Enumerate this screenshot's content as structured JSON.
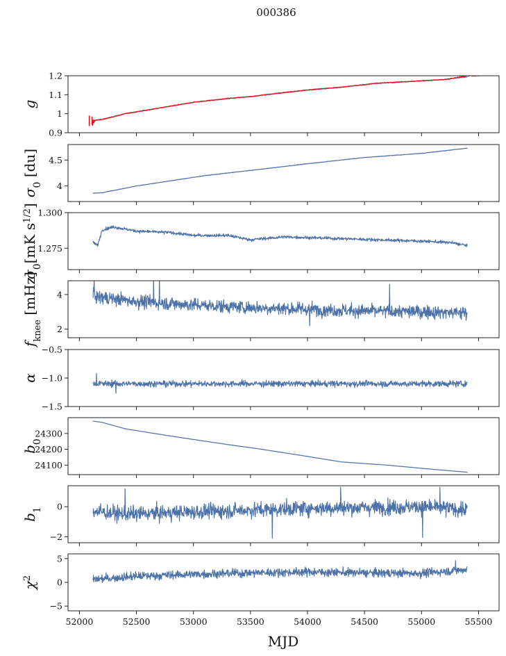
{
  "figure": {
    "title": "000386",
    "xlabel": "MJD",
    "colors": {
      "series": "#4c72a8",
      "fit": "#e8131b"
    }
  },
  "chart_data": [
    {
      "type": "line",
      "ylabel": "g",
      "ylabel_sub": "",
      "ylim": [
        0.9,
        1.2
      ],
      "yticks": [
        0.9,
        1.0,
        1.1,
        1.2
      ],
      "xlim": [
        51900,
        55680
      ],
      "x_range": [
        52110,
        55400
      ],
      "trend": [
        [
          52110,
          0.965
        ],
        [
          52200,
          0.97
        ],
        [
          52400,
          1.0
        ],
        [
          52600,
          1.02
        ],
        [
          52800,
          1.04
        ],
        [
          53000,
          1.06
        ],
        [
          53300,
          1.08
        ],
        [
          53500,
          1.09
        ],
        [
          53700,
          1.105
        ],
        [
          54000,
          1.125
        ],
        [
          54300,
          1.14
        ],
        [
          54600,
          1.16
        ],
        [
          54900,
          1.17
        ],
        [
          55200,
          1.18
        ],
        [
          55400,
          1.195
        ]
      ],
      "noise": 0.002,
      "spikes": [],
      "overlay": {
        "name": "",
        "color": "#e8131b",
        "trend": [
          [
            52110,
            0.962
          ],
          [
            52200,
            0.97
          ],
          [
            52400,
            1.0
          ],
          [
            52600,
            1.02
          ],
          [
            52800,
            1.04
          ],
          [
            53000,
            1.06
          ],
          [
            53300,
            1.08
          ],
          [
            53500,
            1.09
          ],
          [
            53700,
            1.105
          ],
          [
            54000,
            1.125
          ],
          [
            54300,
            1.14
          ],
          [
            54600,
            1.16
          ],
          [
            54900,
            1.17
          ],
          [
            55200,
            1.18
          ],
          [
            55400,
            1.2
          ],
          [
            55500,
            1.2
          ]
        ],
        "burst": [
          52080,
          52130,
          0.03
        ]
      }
    },
    {
      "type": "line",
      "ylabel": "σ",
      "ylabel_sub": "0",
      "ylabel_suffix": " [du]",
      "ylim": [
        3.7,
        4.8
      ],
      "yticks": [
        4.0,
        4.5
      ],
      "xlim": [
        51900,
        55680
      ],
      "x_range": [
        52120,
        55400
      ],
      "trend": [
        [
          52120,
          3.86
        ],
        [
          52200,
          3.87
        ],
        [
          52500,
          4.0
        ],
        [
          52800,
          4.1
        ],
        [
          53100,
          4.2
        ],
        [
          53500,
          4.3
        ],
        [
          54000,
          4.43
        ],
        [
          54500,
          4.55
        ],
        [
          55000,
          4.63
        ],
        [
          55400,
          4.73
        ]
      ],
      "noise": 0.004,
      "spikes": []
    },
    {
      "type": "line",
      "ylabel": "σ",
      "ylabel_sub": "0",
      "ylabel_suffix": "[mK s",
      "ylabel_sup": "1/2",
      "ylabel_end": "]",
      "ylim": [
        1.26,
        1.3
      ],
      "yticks": [
        1.275,
        1.3
      ],
      "ytick_fmt": 3,
      "xlim": [
        51900,
        55680
      ],
      "x_range": [
        52120,
        55400
      ],
      "trend": [
        [
          52120,
          1.279
        ],
        [
          52160,
          1.277
        ],
        [
          52200,
          1.288
        ],
        [
          52300,
          1.29
        ],
        [
          52500,
          1.287
        ],
        [
          52800,
          1.286
        ],
        [
          53000,
          1.284
        ],
        [
          53300,
          1.284
        ],
        [
          53500,
          1.281
        ],
        [
          53800,
          1.283
        ],
        [
          54200,
          1.282
        ],
        [
          54600,
          1.281
        ],
        [
          55000,
          1.28
        ],
        [
          55250,
          1.279
        ],
        [
          55400,
          1.277
        ]
      ],
      "noise": 0.0009,
      "spikes": []
    },
    {
      "type": "line",
      "ylabel": "f",
      "ylabel_sub": "knee",
      "ylabel_suffix": " [mHz]",
      "ylim": [
        1.5,
        4.8
      ],
      "yticks": [
        2,
        4
      ],
      "xlim": [
        51900,
        55680
      ],
      "x_range": [
        52120,
        55400
      ],
      "trend": [
        [
          52120,
          3.9
        ],
        [
          52500,
          3.6
        ],
        [
          53000,
          3.4
        ],
        [
          53500,
          3.25
        ],
        [
          54000,
          3.15
        ],
        [
          54500,
          3.05
        ],
        [
          55000,
          3.0
        ],
        [
          55400,
          2.95
        ]
      ],
      "noise": 0.32,
      "spikes": [
        [
          52130,
          4.9
        ],
        [
          52650,
          4.9
        ],
        [
          52700,
          4.9
        ],
        [
          54720,
          4.6
        ],
        [
          54020,
          2.2
        ]
      ]
    },
    {
      "type": "line",
      "ylabel": "α",
      "ylabel_sub": "",
      "ylim": [
        -1.5,
        -0.5
      ],
      "yticks": [
        -1.5,
        -1.0,
        -0.5
      ],
      "ytick_fmt": 1,
      "xlim": [
        51900,
        55680
      ],
      "x_range": [
        52120,
        55400
      ],
      "trend": [
        [
          52120,
          -1.1
        ],
        [
          55400,
          -1.1
        ]
      ],
      "noise": 0.045,
      "spikes": [
        [
          52150,
          -0.92
        ],
        [
          52320,
          -1.27
        ]
      ]
    },
    {
      "type": "line",
      "ylabel": "b",
      "ylabel_sub": "0",
      "ylim": [
        24040,
        24400
      ],
      "yticks": [
        24100,
        24200,
        24300
      ],
      "xlim": [
        51900,
        55680
      ],
      "x_range": [
        52120,
        55400
      ],
      "trend": [
        [
          52120,
          24378
        ],
        [
          52200,
          24370
        ],
        [
          52400,
          24330
        ],
        [
          52700,
          24295
        ],
        [
          53000,
          24262
        ],
        [
          53300,
          24230
        ],
        [
          53600,
          24200
        ],
        [
          54000,
          24155
        ],
        [
          54300,
          24120
        ],
        [
          54700,
          24100
        ],
        [
          55000,
          24080
        ],
        [
          55400,
          24055
        ]
      ],
      "noise": 0.6,
      "spikes": []
    },
    {
      "type": "line",
      "ylabel": "b",
      "ylabel_sub": "1",
      "ylim": [
        -2.4,
        1.4
      ],
      "yticks": [
        -2,
        0
      ],
      "xlim": [
        51900,
        55680
      ],
      "x_range": [
        52120,
        55400
      ],
      "trend": [
        [
          52120,
          -0.3
        ],
        [
          52400,
          -0.5
        ],
        [
          52800,
          -0.4
        ],
        [
          53200,
          -0.3
        ],
        [
          53600,
          -0.2
        ],
        [
          54000,
          -0.1
        ],
        [
          54500,
          -0.05
        ],
        [
          55000,
          0.0
        ],
        [
          55400,
          -0.2
        ]
      ],
      "noise": 0.42,
      "spikes": [
        [
          52400,
          1.2
        ],
        [
          53690,
          -2.1
        ],
        [
          54290,
          1.3
        ],
        [
          55010,
          -2.05
        ],
        [
          55160,
          1.3
        ]
      ]
    },
    {
      "type": "line",
      "ylabel": "χ",
      "ylabel_sup": "2",
      "ylim": [
        -6,
        6
      ],
      "yticks": [
        -5,
        0,
        5
      ],
      "xticks": [
        52000,
        52500,
        53000,
        53500,
        54000,
        54500,
        55000,
        55500
      ],
      "xlim": [
        51900,
        55680
      ],
      "x_range": [
        52120,
        55400
      ],
      "trend": [
        [
          52120,
          0.6
        ],
        [
          52500,
          1.3
        ],
        [
          53000,
          1.7
        ],
        [
          53500,
          2.0
        ],
        [
          54000,
          2.2
        ],
        [
          54500,
          2.0
        ],
        [
          55000,
          1.9
        ],
        [
          55400,
          2.7
        ]
      ],
      "noise": 0.75,
      "spikes": [
        [
          55300,
          4.6
        ]
      ]
    }
  ]
}
